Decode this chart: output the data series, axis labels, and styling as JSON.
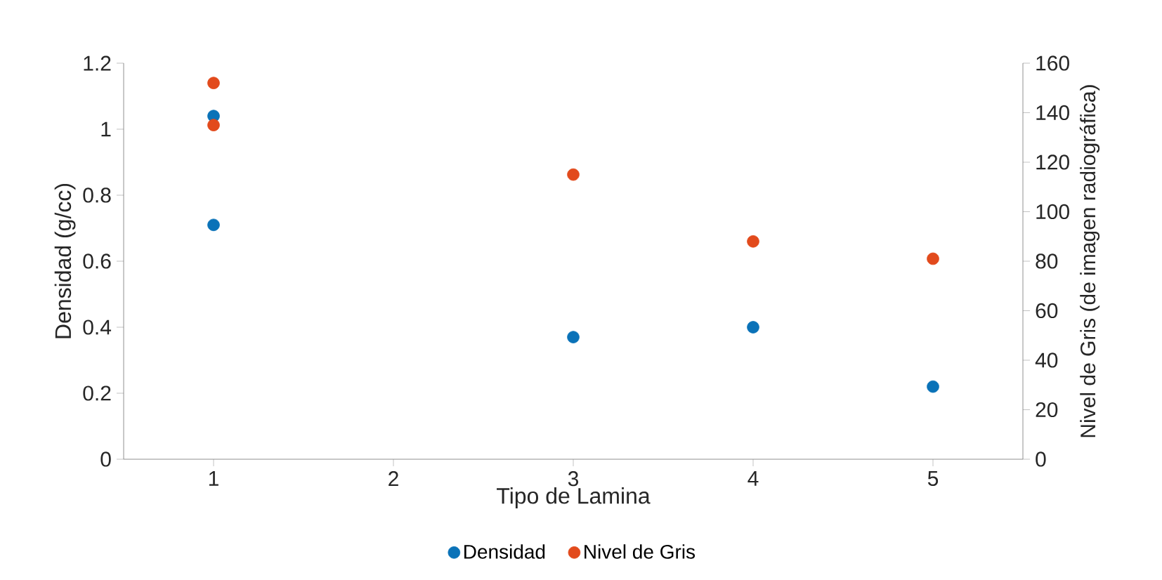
{
  "chart_data": {
    "type": "scatter",
    "xlabel": "Tipo de Lamina",
    "ylabel": "Densidad (g/cc)",
    "y2label": "Nivel de Gris (de imagen radiográfica)",
    "series": [
      {
        "name": "Densidad",
        "color": "#0a72b8",
        "x": [
          1,
          1,
          3,
          4,
          5
        ],
        "values": [
          1.04,
          0.71,
          0.37,
          0.4,
          0.22
        ]
      },
      {
        "name": "Nivel de Gris",
        "color": "#e24a1c",
        "axis": "y2",
        "x": [
          1,
          1,
          3,
          4,
          5
        ],
        "values": [
          152,
          135,
          115,
          88,
          81
        ]
      }
    ],
    "xlim": [
      0.5,
      5.5
    ],
    "xticks": [
      1,
      2,
      3,
      4,
      5
    ],
    "ylim": [
      0,
      1.2
    ],
    "yticks": [
      0,
      0.2,
      0.4,
      0.6,
      0.8,
      1,
      1.2
    ],
    "y2lim": [
      0,
      160
    ],
    "y2ticks": [
      0,
      20,
      40,
      60,
      80,
      100,
      120,
      140,
      160
    ],
    "legend": "bottom",
    "grid": false
  }
}
